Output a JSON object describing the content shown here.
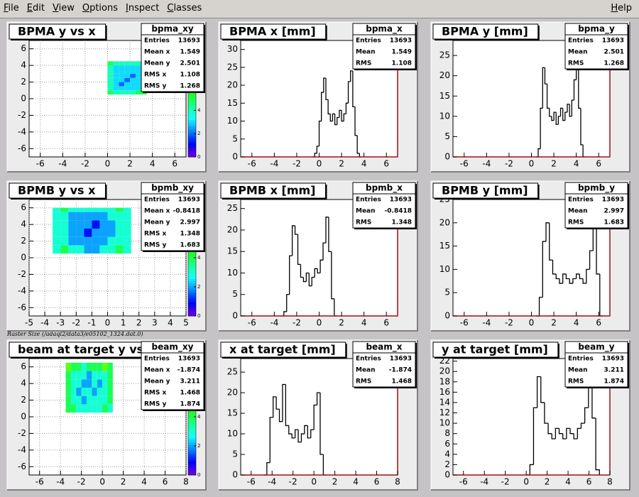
{
  "menu": [
    "File",
    "Edit",
    "View",
    "Options",
    "Inspect",
    "Classes"
  ],
  "help": "Help",
  "caption": "Raster Size (/adaql2/data3/e05102_1324.dat.0)",
  "chart_data": [
    {
      "type": "histogram2d",
      "title": "BPMA y vs x",
      "stats": {
        "name": "bpma_xy",
        "labels": [
          "Entries",
          "Mean x",
          "Mean y",
          "RMS x",
          "RMS y"
        ],
        "values": [
          13693,
          1.549,
          2.501,
          1.108,
          1.268
        ]
      },
      "xbins": [
        0,
        0.5,
        1,
        1.5,
        2,
        2.5,
        3,
        3.5
      ],
      "ybins": [
        0.5,
        1,
        1.5,
        2,
        2.5,
        3,
        3.5,
        4,
        4.5
      ],
      "counts": [
        [
          5,
          4,
          4,
          4,
          4,
          5,
          5
        ],
        [
          4,
          3,
          3,
          3,
          3,
          3,
          4
        ],
        [
          4,
          3,
          2,
          3,
          3,
          3,
          4
        ],
        [
          4,
          3,
          3,
          2,
          3,
          3,
          4
        ],
        [
          4,
          3,
          3,
          3,
          2,
          3,
          4
        ],
        [
          4,
          3,
          3,
          3,
          3,
          3,
          4
        ],
        [
          4,
          3,
          3,
          3,
          3,
          3,
          5
        ],
        [
          5,
          4,
          4,
          4,
          4,
          4,
          5
        ]
      ],
      "xlim": [
        -7,
        7
      ],
      "xticks": [
        -6,
        -4,
        -2,
        0,
        2,
        4,
        6
      ],
      "ylim": [
        -7,
        7
      ],
      "yticks": [
        -6,
        -4,
        -2,
        0,
        2,
        4,
        6
      ],
      "zlim": [
        0,
        10
      ],
      "zticks": [
        0,
        2,
        4,
        6,
        8
      ],
      "grid": true
    },
    {
      "type": "histogram",
      "title": "BPMA x [mm]",
      "color": "#000000",
      "stats": {
        "name": "bpma_x",
        "labels": [
          "Entries",
          "Mean",
          "RMS"
        ],
        "values": [
          13693,
          1.549,
          1.108
        ]
      },
      "bins": [
        -0.6,
        -0.4,
        -0.2,
        0,
        0.2,
        0.4,
        0.6,
        0.8,
        1,
        1.2,
        1.4,
        1.6,
        1.8,
        2,
        2.2,
        2.4,
        2.6,
        2.8,
        3,
        3.2,
        3.4,
        3.6,
        3.8
      ],
      "values": [
        0,
        1,
        3,
        10,
        18,
        22,
        16,
        12,
        10,
        12,
        9,
        11,
        13,
        10,
        12,
        15,
        21,
        24,
        14,
        6,
        1,
        0
      ],
      "xlim": [
        -7,
        7
      ],
      "xticks": [
        -6,
        -4,
        -2,
        0,
        2,
        4,
        6
      ],
      "ylim": [
        0,
        32.5
      ],
      "yticks": [
        0,
        5,
        10,
        15,
        20,
        25,
        30
      ]
    },
    {
      "type": "histogram",
      "title": "BPMA y [mm]",
      "color": "#000000",
      "stats": {
        "name": "bpma_y",
        "labels": [
          "Entries",
          "Mean",
          "RMS"
        ],
        "values": [
          13693,
          2.501,
          1.268
        ]
      },
      "bins": [
        0.4,
        0.6,
        0.8,
        1,
        1.2,
        1.4,
        1.6,
        1.8,
        2,
        2.2,
        2.4,
        2.6,
        2.8,
        3,
        3.2,
        3.4,
        3.6,
        3.8,
        4,
        4.2,
        4.4,
        4.6,
        4.8
      ],
      "values": [
        0,
        2,
        12,
        22,
        18,
        12,
        10,
        9,
        11,
        8,
        10,
        12,
        9,
        11,
        13,
        10,
        14,
        19,
        23,
        12,
        3,
        0
      ],
      "xlim": [
        -7,
        7
      ],
      "xticks": [
        -6,
        -4,
        -2,
        0,
        2,
        4,
        6
      ],
      "ylim": [
        0,
        28.7
      ],
      "yticks": [
        0,
        5,
        10,
        15,
        20,
        25
      ]
    },
    {
      "type": "histogram2d",
      "title": "BPMB y vs x",
      "stats": {
        "name": "bpmb_xy",
        "labels": [
          "Entries",
          "Mean x",
          "Mean y",
          "RMS x",
          "RMS y"
        ],
        "values": [
          13693,
          -0.8418,
          2.997,
          1.348,
          1.683
        ]
      },
      "xbins": [
        -3.5,
        -3,
        -2.5,
        -2,
        -1.5,
        -1,
        -0.5,
        0,
        0.5,
        1,
        1.5
      ],
      "ybins": [
        0.5,
        1.5,
        2.5,
        3.5,
        4.5,
        5.5,
        6
      ],
      "counts": [
        [
          3,
          4,
          3,
          3,
          2,
          2,
          3,
          3,
          4,
          3
        ],
        [
          3,
          3,
          2,
          2,
          2,
          2,
          2,
          3,
          3,
          3
        ],
        [
          3,
          3,
          2,
          2,
          1,
          2,
          2,
          2,
          3,
          3
        ],
        [
          3,
          3,
          2,
          2,
          2,
          1,
          2,
          2,
          3,
          3
        ],
        [
          3,
          3,
          2,
          2,
          2,
          2,
          2,
          3,
          3,
          3
        ],
        [
          3,
          4,
          3,
          3,
          3,
          3,
          3,
          3,
          4,
          3
        ]
      ],
      "xlim": [
        -5,
        5
      ],
      "xticks": [
        -5,
        -4,
        -3,
        -2,
        -1,
        0,
        1,
        2,
        3,
        4,
        5
      ],
      "ylim": [
        -7,
        7
      ],
      "yticks": [
        -6,
        -4,
        -2,
        0,
        2,
        4,
        6
      ],
      "zlim": [
        0,
        8
      ],
      "zticks": [
        0,
        2,
        4,
        6
      ],
      "grid": true
    },
    {
      "type": "histogram",
      "title": "BPMB x [mm]",
      "color": "#000000",
      "stats": {
        "name": "bpmb_x",
        "labels": [
          "Entries",
          "Mean",
          "RMS"
        ],
        "values": [
          13693,
          -0.8418,
          1.348
        ]
      },
      "bins": [
        -3.4,
        -3.15,
        -2.9,
        -2.65,
        -2.4,
        -2.15,
        -1.9,
        -1.65,
        -1.4,
        -1.15,
        -0.9,
        -0.65,
        -0.4,
        -0.15,
        0.1,
        0.35,
        0.6,
        0.85,
        1.1,
        1.35,
        1.6
      ],
      "values": [
        0,
        1,
        5,
        14,
        21,
        19,
        12,
        9,
        8,
        10,
        7,
        9,
        11,
        10,
        13,
        17,
        23,
        15,
        4,
        0
      ],
      "xlim": [
        -7,
        7
      ],
      "xticks": [
        -6,
        -4,
        -2,
        0,
        2,
        4,
        6
      ],
      "ylim": [
        0,
        27.1
      ],
      "yticks": [
        0,
        5,
        10,
        15,
        20,
        25
      ]
    },
    {
      "type": "histogram",
      "title": "BPMB y [mm]",
      "color": "#000000",
      "stats": {
        "name": "bpmb_y",
        "labels": [
          "Entries",
          "Mean",
          "RMS"
        ],
        "values": [
          13693,
          2.997,
          1.683
        ]
      },
      "bins": [
        0.4,
        0.7,
        1,
        1.3,
        1.6,
        1.9,
        2.2,
        2.5,
        2.8,
        3.1,
        3.4,
        3.7,
        4,
        4.3,
        4.6,
        4.9,
        5.2,
        5.5,
        5.8,
        6.1,
        6.4
      ],
      "values": [
        0,
        4,
        16,
        20,
        12,
        9,
        8,
        7,
        9,
        8,
        7,
        8,
        9,
        8,
        7,
        10,
        14,
        20,
        9,
        0
      ],
      "xlim": [
        -7,
        7
      ],
      "xticks": [
        -6,
        -4,
        -2,
        0,
        2,
        4,
        6
      ],
      "ylim": [
        0,
        25
      ],
      "yticks": [
        0,
        5,
        10,
        15,
        20,
        25
      ]
    },
    {
      "type": "histogram2d",
      "title": "beam at target y vs x",
      "stats": {
        "name": "beam_xy",
        "labels": [
          "Entries",
          "Mean x",
          "Mean y",
          "RMS x",
          "RMS y"
        ],
        "values": [
          13693,
          -1.874,
          3.211,
          1.468,
          1.874
        ]
      },
      "xbins": [
        -3.5,
        -3,
        -2.5,
        -2,
        -1.5,
        -1,
        -0.5,
        0,
        0.5,
        1
      ],
      "ybins": [
        0.5,
        1.5,
        2.5,
        3.5,
        4.5,
        5.5,
        6.5
      ],
      "counts": [
        [
          4,
          4,
          3,
          3,
          3,
          3,
          3,
          4,
          3
        ],
        [
          4,
          3,
          3,
          2,
          3,
          3,
          3,
          3,
          4
        ],
        [
          4,
          3,
          2,
          3,
          3,
          2,
          3,
          3,
          4
        ],
        [
          4,
          3,
          3,
          2,
          2,
          3,
          2,
          3,
          4
        ],
        [
          4,
          3,
          3,
          3,
          2,
          3,
          3,
          3,
          4
        ],
        [
          5,
          4,
          4,
          3,
          4,
          4,
          4,
          5,
          4
        ]
      ],
      "xlim": [
        -7,
        8
      ],
      "xticks": [
        -6,
        -4,
        -2,
        0,
        2,
        4,
        6,
        8
      ],
      "ylim": [
        -7,
        7
      ],
      "yticks": [
        -6,
        -4,
        -2,
        0,
        2,
        4,
        6
      ],
      "zlim": [
        0,
        8
      ],
      "zticks": [
        0,
        2,
        4,
        6
      ],
      "grid": true
    },
    {
      "type": "histogram",
      "title": "x at target [mm]",
      "color": "#000000",
      "stats": {
        "name": "beam_x",
        "labels": [
          "Entries",
          "Mean",
          "RMS"
        ],
        "values": [
          13693,
          -1.874,
          1.468
        ]
      },
      "bins": [
        -4.8,
        -4.5,
        -4.2,
        -3.9,
        -3.6,
        -3.3,
        -3,
        -2.7,
        -2.4,
        -2.1,
        -1.8,
        -1.5,
        -1.2,
        -0.9,
        -0.6,
        -0.3,
        0,
        0.3,
        0.6,
        0.9,
        1.2
      ],
      "values": [
        0,
        3,
        14,
        19,
        16,
        13,
        22,
        12,
        10,
        9,
        11,
        8,
        10,
        12,
        9,
        11,
        17,
        20,
        5,
        0
      ],
      "xlim": [
        -7,
        8
      ],
      "xticks": [
        -6,
        -4,
        -2,
        0,
        2,
        4,
        6,
        8
      ],
      "ylim": [
        0,
        28.3
      ],
      "yticks": [
        0,
        5,
        10,
        15,
        20,
        25
      ]
    },
    {
      "type": "histogram",
      "title": "y at target [mm]",
      "color": "#000000",
      "stats": {
        "name": "beam_y",
        "labels": [
          "Entries",
          "Mean",
          "RMS"
        ],
        "values": [
          13693,
          3.211,
          1.874
        ]
      },
      "bins": [
        0,
        0.35,
        0.7,
        1.05,
        1.4,
        1.75,
        2.1,
        2.45,
        2.8,
        3.15,
        3.5,
        3.85,
        4.2,
        4.55,
        4.9,
        5.25,
        5.6,
        5.95,
        6.3,
        6.65,
        7
      ],
      "values": [
        0,
        2,
        13,
        19,
        14,
        10,
        8,
        7,
        9,
        8,
        7,
        9,
        8,
        7,
        9,
        10,
        13,
        19,
        11,
        1
      ],
      "xlim": [
        -7,
        8
      ],
      "xticks": [
        -6,
        -4,
        -2,
        0,
        2,
        4,
        6,
        8
      ],
      "ylim": [
        0,
        22.5
      ],
      "yticks": [
        0,
        2,
        4,
        6,
        8,
        10,
        12,
        14,
        16,
        18,
        20,
        22
      ]
    }
  ]
}
